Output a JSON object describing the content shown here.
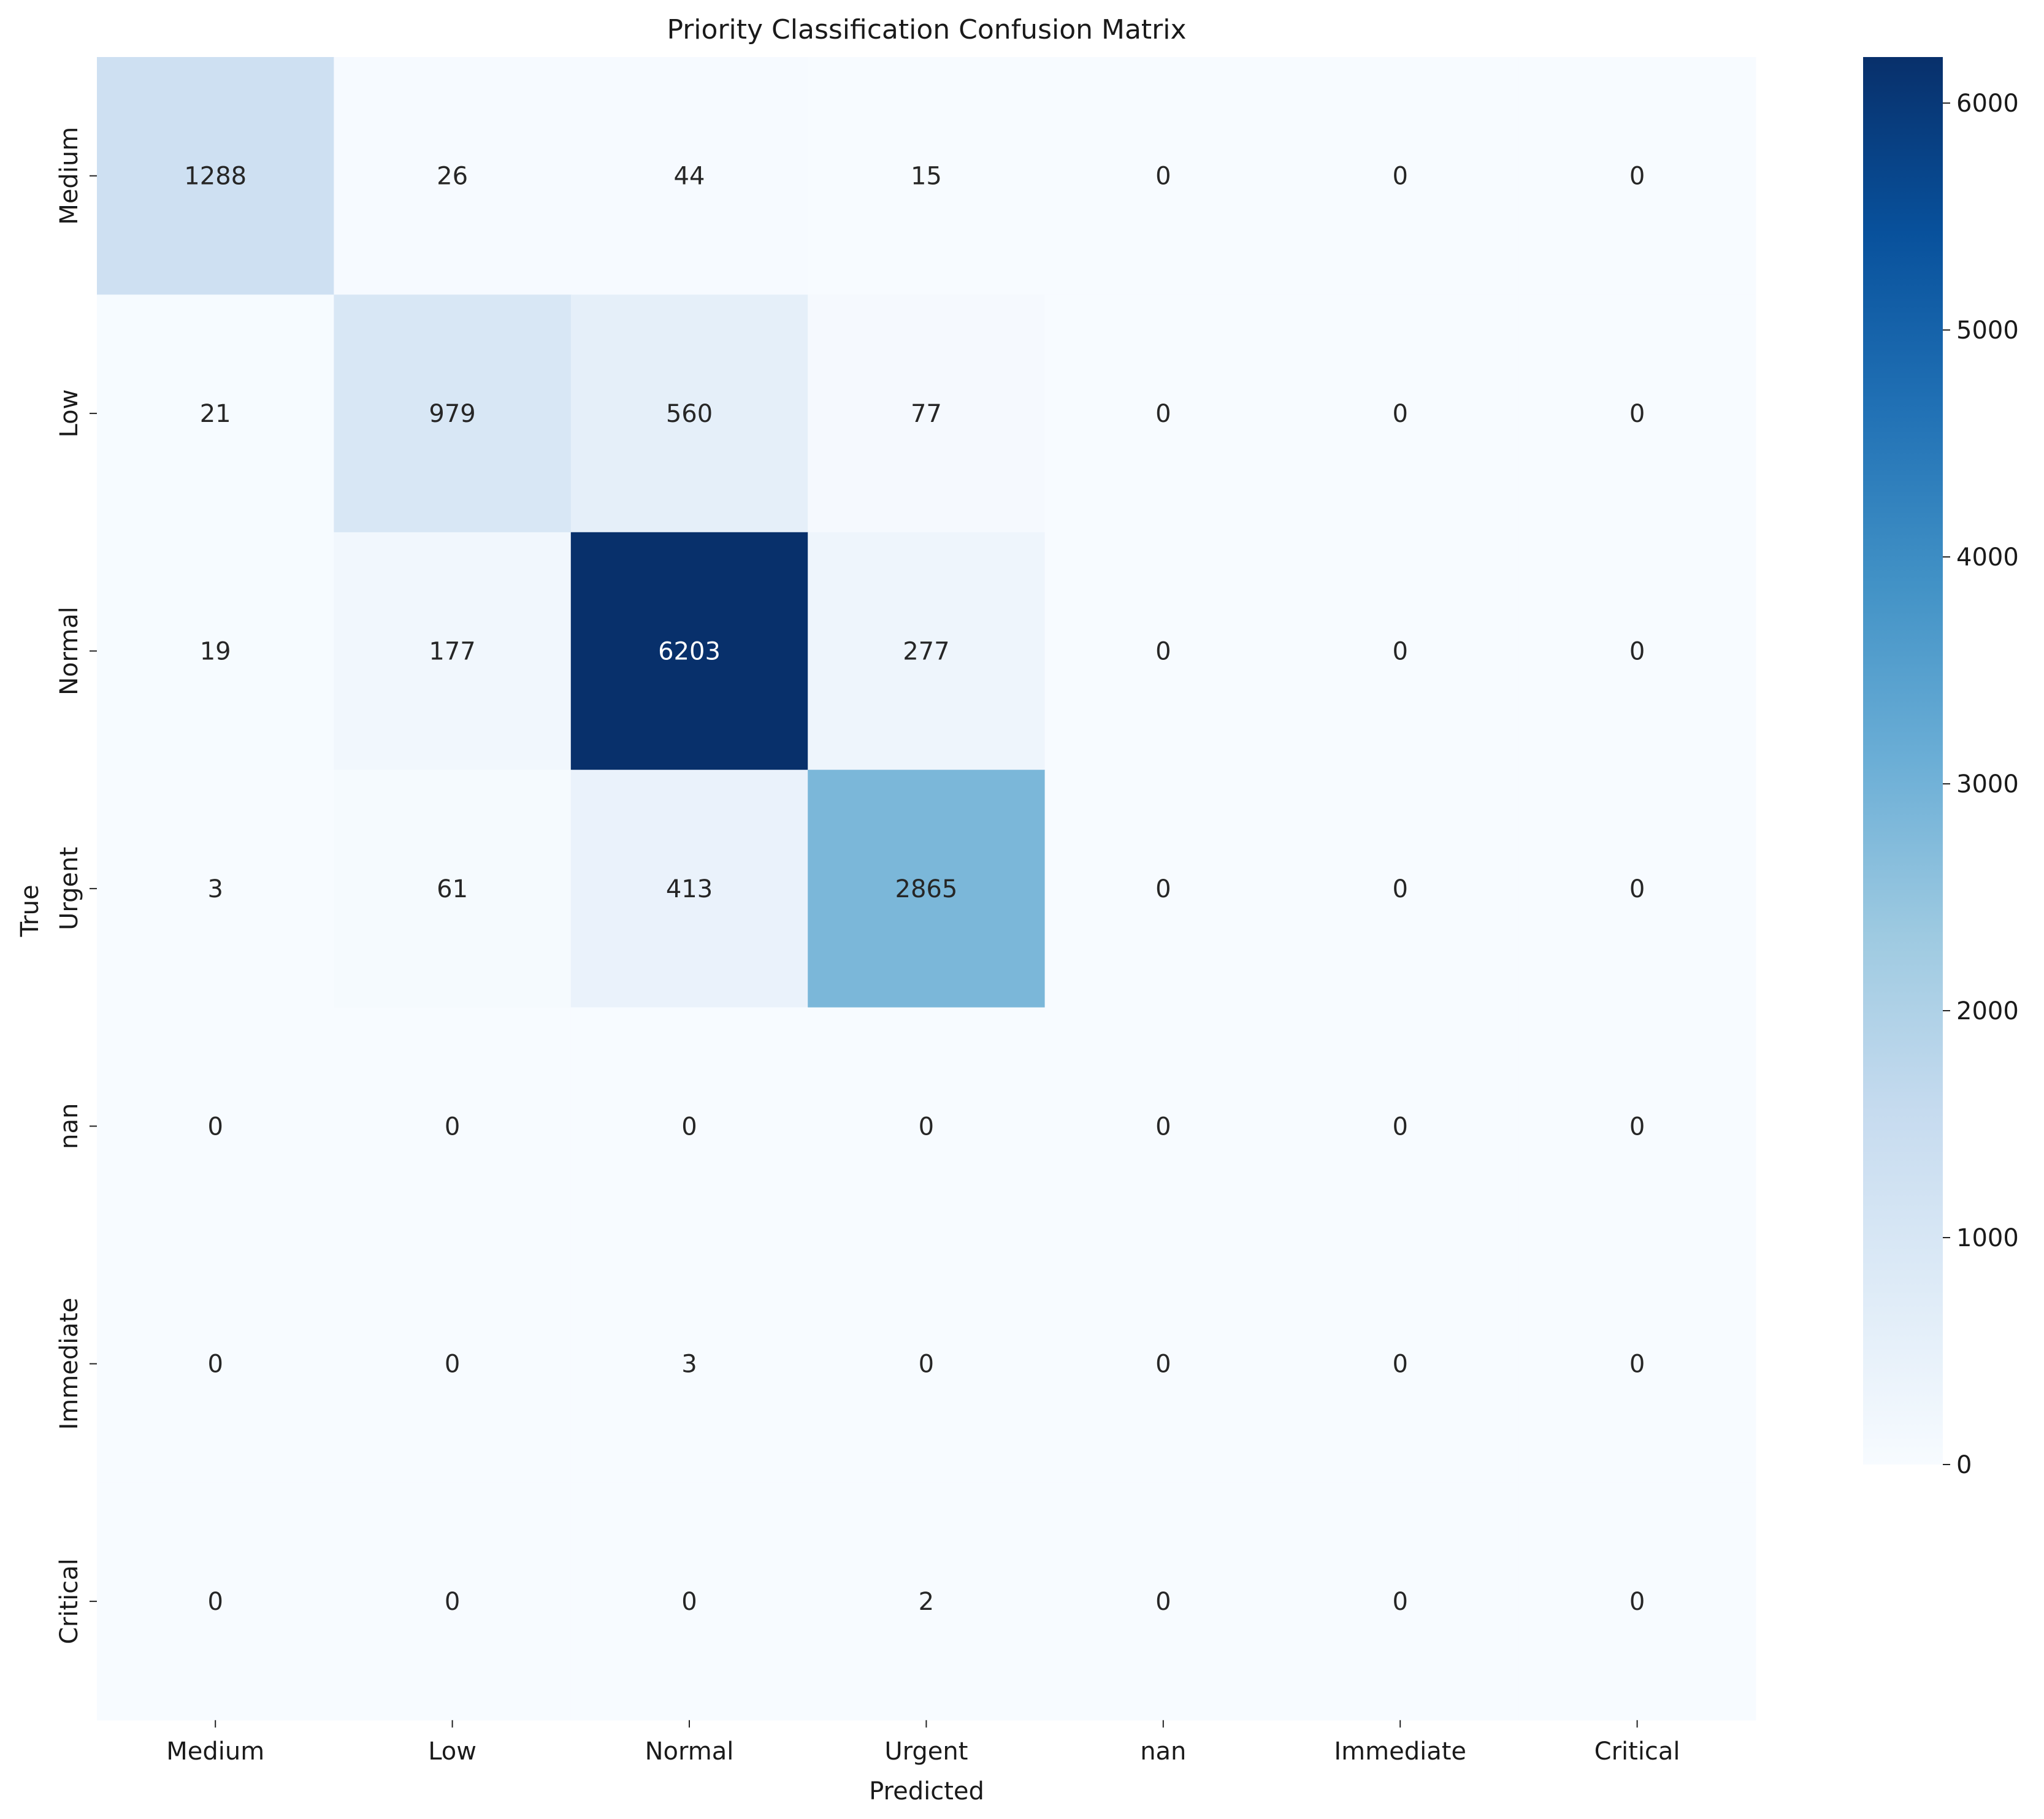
{
  "chart_data": {
    "type": "heatmap",
    "title": "Priority Classification Confusion Matrix",
    "xlabel": "Predicted",
    "ylabel": "True",
    "x_categories": [
      "Medium",
      "Low",
      "Normal",
      "Urgent",
      "nan",
      "Immediate",
      "Critical"
    ],
    "y_categories": [
      "Medium",
      "Low",
      "Normal",
      "Urgent",
      "nan",
      "Immediate",
      "Critical"
    ],
    "values": [
      [
        1288,
        26,
        44,
        15,
        0,
        0,
        0
      ],
      [
        21,
        979,
        560,
        77,
        0,
        0,
        0
      ],
      [
        19,
        177,
        6203,
        277,
        0,
        0,
        0
      ],
      [
        3,
        61,
        413,
        2865,
        0,
        0,
        0
      ],
      [
        0,
        0,
        0,
        0,
        0,
        0,
        0
      ],
      [
        0,
        0,
        3,
        0,
        0,
        0,
        0
      ],
      [
        0,
        0,
        0,
        2,
        0,
        0,
        0
      ]
    ],
    "colormap": "Blues",
    "colorbar": {
      "range": [
        0,
        6203
      ],
      "ticks": [
        0,
        1000,
        2000,
        3000,
        4000,
        5000,
        6000
      ]
    },
    "grid": false
  }
}
